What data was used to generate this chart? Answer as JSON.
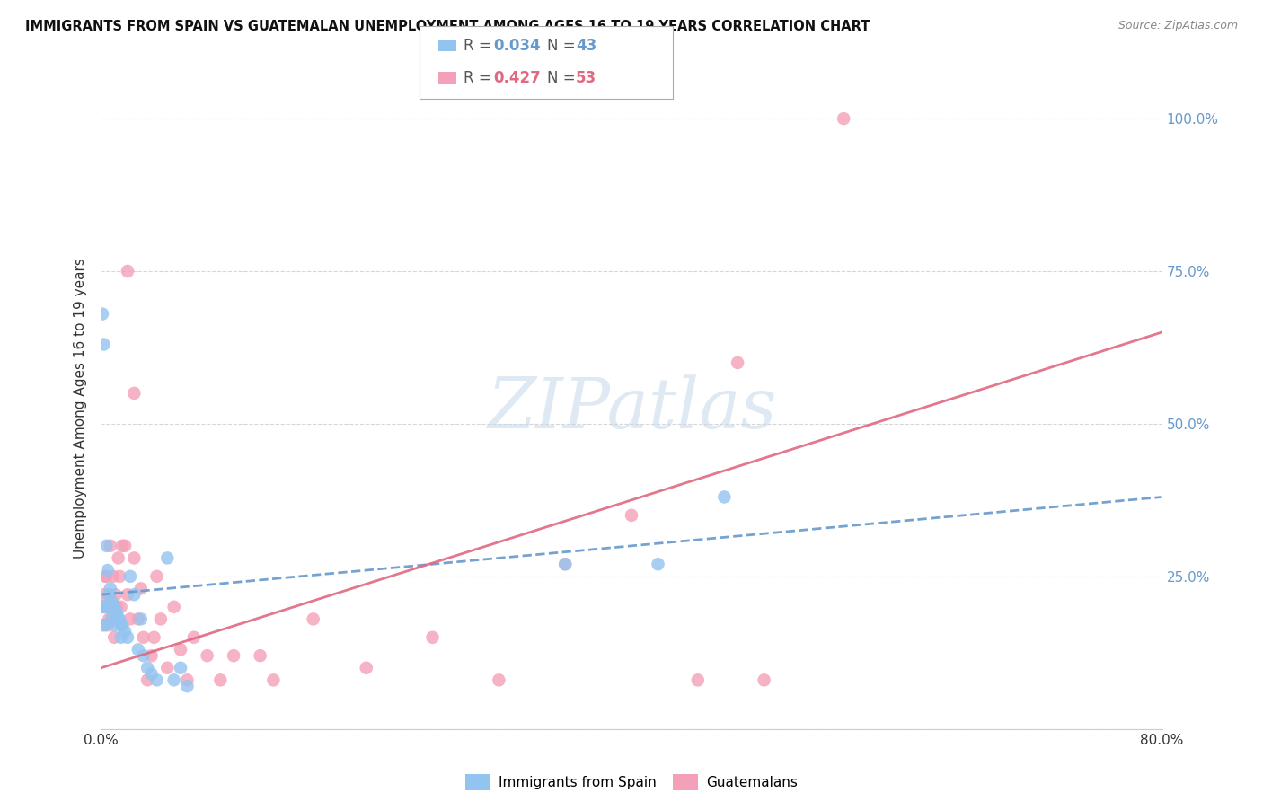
{
  "title": "IMMIGRANTS FROM SPAIN VS GUATEMALAN UNEMPLOYMENT AMONG AGES 16 TO 19 YEARS CORRELATION CHART",
  "source": "Source: ZipAtlas.com",
  "ylabel": "Unemployment Among Ages 16 to 19 years",
  "xlim": [
    0.0,
    0.8
  ],
  "ylim": [
    0.0,
    1.05
  ],
  "yticks": [
    0.0,
    0.25,
    0.5,
    0.75,
    1.0
  ],
  "ytick_labels": [
    "",
    "25.0%",
    "50.0%",
    "75.0%",
    "100.0%"
  ],
  "xtick_left": "0.0%",
  "xtick_right": "80.0%",
  "grid_color": "#cccccc",
  "background_color": "#ffffff",
  "blue_color": "#93c4f0",
  "pink_color": "#f4a0b8",
  "blue_line_color": "#6699cc",
  "pink_line_color": "#e06880",
  "right_axis_color": "#6699cc",
  "legend_r1": "0.034",
  "legend_n1": "43",
  "legend_r2": "0.427",
  "legend_n2": "53",
  "spain_x": [
    0.001,
    0.001,
    0.001,
    0.002,
    0.002,
    0.003,
    0.003,
    0.004,
    0.004,
    0.005,
    0.005,
    0.006,
    0.007,
    0.007,
    0.008,
    0.008,
    0.009,
    0.01,
    0.01,
    0.011,
    0.012,
    0.013,
    0.014,
    0.015,
    0.015,
    0.016,
    0.018,
    0.02,
    0.022,
    0.025,
    0.028,
    0.03,
    0.032,
    0.035,
    0.038,
    0.042,
    0.05,
    0.055,
    0.06,
    0.065,
    0.35,
    0.42,
    0.47
  ],
  "spain_y": [
    0.68,
    0.2,
    0.17,
    0.63,
    0.2,
    0.2,
    0.17,
    0.3,
    0.2,
    0.26,
    0.2,
    0.22,
    0.23,
    0.2,
    0.21,
    0.18,
    0.2,
    0.2,
    0.17,
    0.19,
    0.19,
    0.18,
    0.18,
    0.17,
    0.15,
    0.17,
    0.16,
    0.15,
    0.25,
    0.22,
    0.13,
    0.18,
    0.12,
    0.1,
    0.09,
    0.08,
    0.28,
    0.08,
    0.1,
    0.07,
    0.27,
    0.27,
    0.38
  ],
  "guatemalan_x": [
    0.001,
    0.002,
    0.003,
    0.003,
    0.004,
    0.005,
    0.005,
    0.006,
    0.006,
    0.007,
    0.008,
    0.009,
    0.01,
    0.011,
    0.012,
    0.013,
    0.014,
    0.015,
    0.016,
    0.018,
    0.02,
    0.02,
    0.022,
    0.025,
    0.025,
    0.028,
    0.03,
    0.032,
    0.035,
    0.038,
    0.04,
    0.042,
    0.045,
    0.05,
    0.055,
    0.06,
    0.065,
    0.07,
    0.08,
    0.09,
    0.1,
    0.12,
    0.13,
    0.16,
    0.2,
    0.25,
    0.3,
    0.35,
    0.4,
    0.45,
    0.48,
    0.5,
    0.56
  ],
  "guatemalan_y": [
    0.2,
    0.22,
    0.25,
    0.2,
    0.25,
    0.2,
    0.17,
    0.22,
    0.18,
    0.3,
    0.18,
    0.25,
    0.15,
    0.22,
    0.2,
    0.28,
    0.25,
    0.2,
    0.3,
    0.3,
    0.22,
    0.75,
    0.18,
    0.28,
    0.55,
    0.18,
    0.23,
    0.15,
    0.08,
    0.12,
    0.15,
    0.25,
    0.18,
    0.1,
    0.2,
    0.13,
    0.08,
    0.15,
    0.12,
    0.08,
    0.12,
    0.12,
    0.08,
    0.18,
    0.1,
    0.15,
    0.08,
    0.27,
    0.35,
    0.08,
    0.6,
    0.08,
    1.0
  ],
  "blue_line_y0": 0.22,
  "blue_line_y1": 0.38,
  "pink_line_y0": 0.1,
  "pink_line_y1": 0.65
}
